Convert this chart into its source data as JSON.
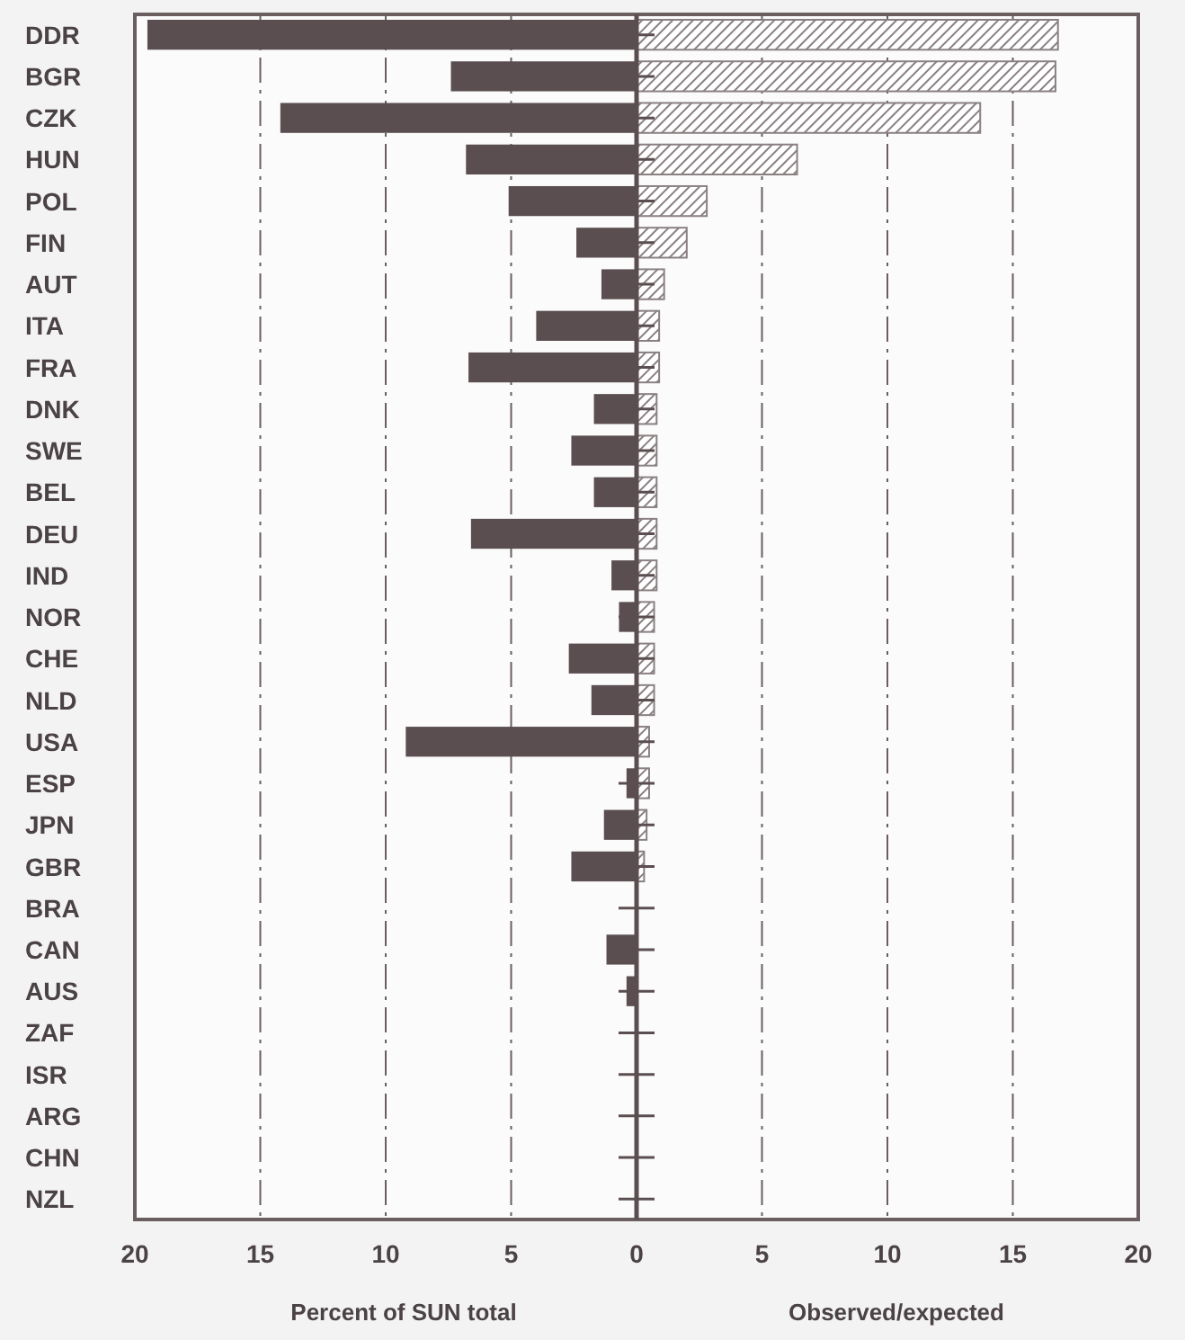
{
  "chart_data": {
    "type": "bar",
    "orientation": "horizontal",
    "stacked": true,
    "xlabel": "Percent of SUN total",
    "annotations": [
      "Observed/expected"
    ],
    "categories": [
      "DDR",
      "BGR",
      "CZK",
      "HUN",
      "POL",
      "FIN",
      "AUT",
      "ITA",
      "FRA",
      "DNK",
      "SWE",
      "BEL",
      "DEU",
      "IND",
      "NOR",
      "CHE",
      "NLD",
      "USA",
      "ESP",
      "JPN",
      "GBR",
      "BRA",
      "CAN",
      "AUS",
      "ZAF",
      "ISR",
      "ARG",
      "CHN",
      "NZL"
    ],
    "series": [
      {
        "color": "#5a4e50",
        "values": [
          -19.5,
          -7.4,
          -14.2,
          -6.8,
          -5.1,
          -2.4,
          -1.4,
          -4.0,
          -6.7,
          -1.7,
          -2.6,
          -1.7,
          -6.6,
          -1.0,
          -0.7,
          -2.7,
          -1.8,
          -9.2,
          -0.4,
          -1.3,
          -2.6,
          0,
          -1.2,
          -0.4,
          0,
          0,
          0,
          0,
          0
        ]
      },
      {
        "color": "#8a8082",
        "values": [
          16.8,
          16.7,
          13.7,
          6.4,
          2.8,
          2.0,
          1.1,
          0.9,
          0.9,
          0.8,
          0.8,
          0.8,
          0.8,
          0.8,
          0.7,
          0.7,
          0.7,
          0.5,
          0.5,
          0.4,
          0.3,
          0,
          0,
          0,
          0,
          0,
          0,
          0,
          0
        ]
      }
    ],
    "xlim": [
      -20,
      20
    ],
    "xticks": [
      {
        "value": -20,
        "label": "20"
      },
      {
        "value": -15,
        "label": "15"
      },
      {
        "value": -10,
        "label": "10"
      },
      {
        "value": -5,
        "label": "5"
      },
      0,
      5,
      10,
      15,
      20
    ],
    "grid": "x"
  }
}
